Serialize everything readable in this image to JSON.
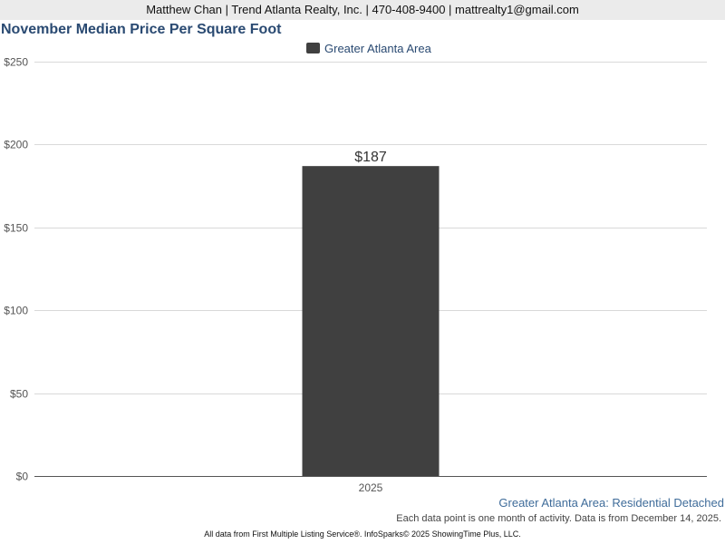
{
  "header": {
    "contact": "Matthew Chan | Trend Atlanta Realty, Inc. | 470-408-9400 | mattrealty1@gmail.com"
  },
  "colors": {
    "bar": "#404040",
    "title": "#2a4a72",
    "subtitle": "#3f6c9a"
  },
  "chart_data": {
    "type": "bar",
    "title": "November Median Price Per Square Foot",
    "categories": [
      "2025"
    ],
    "series": [
      {
        "name": "Greater Atlanta Area",
        "values": [
          187
        ]
      }
    ],
    "data_labels": [
      "$187"
    ],
    "y_ticks": [
      0,
      50,
      100,
      150,
      200,
      250
    ],
    "y_tick_labels": [
      "$0",
      "$50",
      "$100",
      "$150",
      "$200",
      "$250"
    ],
    "ylim": [
      0,
      250
    ],
    "grid": true,
    "legend_position": "top-center",
    "xlabel": "",
    "ylabel": ""
  },
  "footer": {
    "subtitle": "Greater Atlanta Area: Residential Detached",
    "note": "Each data point is one month of activity. Data is from December 14, 2025.",
    "source": "All data from First Multiple Listing Service®. InfoSparks© 2025 ShowingTime Plus, LLC."
  }
}
